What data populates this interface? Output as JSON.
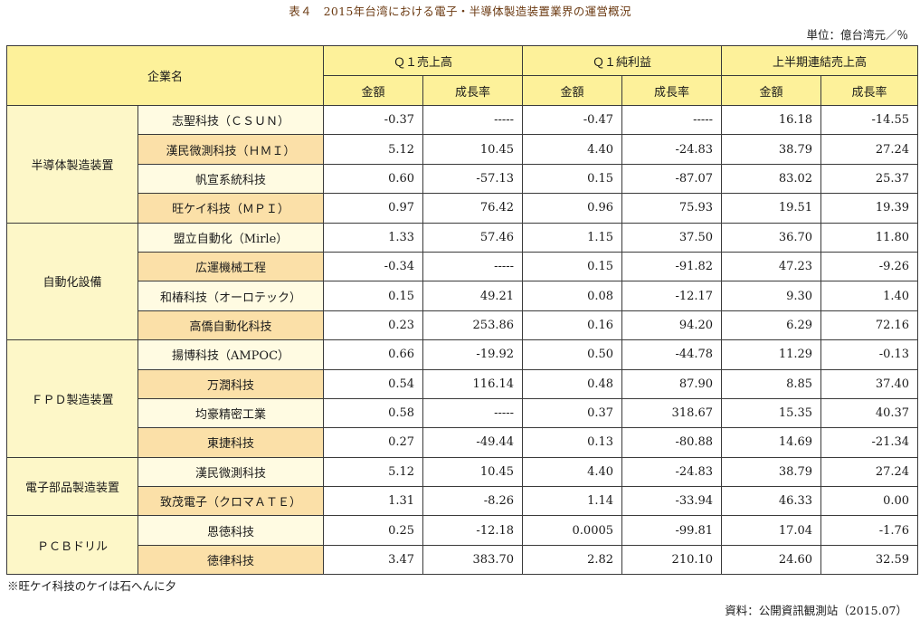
{
  "title": "表４　2015年台湾における電子・半導体製造装置業界の運営概況",
  "unit": "単位：億台湾元／％",
  "table": {
    "header_company": "企業名",
    "groups": [
      "Ｑ１売上高",
      "Ｑ１純利益",
      "上半期連結売上高"
    ],
    "sub": {
      "amount": "金額",
      "growth": "成長率"
    },
    "categories": [
      {
        "label": "半導体製造装置",
        "rows": [
          {
            "name": "志聖科技（ＣＳＵＮ）",
            "v": [
              "-0.37",
              "-----",
              "-0.47",
              "-----",
              "16.18",
              "-14.55"
            ]
          },
          {
            "name": "漢民微測科技（ＨＭＩ）",
            "v": [
              "5.12",
              "10.45",
              "4.40",
              "-24.83",
              "38.79",
              "27.24"
            ]
          },
          {
            "name": "帆宣系統科技",
            "v": [
              "0.60",
              "-57.13",
              "0.15",
              "-87.07",
              "83.02",
              "25.37"
            ]
          },
          {
            "name": "旺ケイ科技（ＭＰＩ）",
            "v": [
              "0.97",
              "76.42",
              "0.96",
              "75.93",
              "19.51",
              "19.39"
            ]
          }
        ]
      },
      {
        "label": "自動化設備",
        "rows": [
          {
            "name": "盟立自動化（Mirle）",
            "v": [
              "1.33",
              "57.46",
              "1.15",
              "37.50",
              "36.70",
              "11.80"
            ]
          },
          {
            "name": "広運機械工程",
            "v": [
              "-0.34",
              "-----",
              "0.15",
              "-91.82",
              "47.23",
              "-9.26"
            ]
          },
          {
            "name": "和椿科技（オーロテック）",
            "v": [
              "0.15",
              "49.21",
              "0.08",
              "-12.17",
              "9.30",
              "1.40"
            ]
          },
          {
            "name": "高僑自動化科技",
            "v": [
              "0.23",
              "253.86",
              "0.16",
              "94.20",
              "6.29",
              "72.16"
            ]
          }
        ]
      },
      {
        "label": "ＦＰＤ製造装置",
        "rows": [
          {
            "name": "揚博科技（AMPOC）",
            "v": [
              "0.66",
              "-19.92",
              "0.50",
              "-44.78",
              "11.29",
              "-0.13"
            ]
          },
          {
            "name": "万潤科技",
            "v": [
              "0.54",
              "116.14",
              "0.48",
              "87.90",
              "8.85",
              "37.40"
            ]
          },
          {
            "name": "均豪精密工業",
            "v": [
              "0.58",
              "-----",
              "0.37",
              "318.67",
              "15.35",
              "40.37"
            ]
          },
          {
            "name": "東捷科技",
            "v": [
              "0.27",
              "-49.44",
              "0.13",
              "-80.88",
              "14.69",
              "-21.34"
            ]
          }
        ]
      },
      {
        "label": "電子部品製造装置",
        "rows": [
          {
            "name": "漢民微測科技",
            "v": [
              "5.12",
              "10.45",
              "4.40",
              "-24.83",
              "38.79",
              "27.24"
            ]
          },
          {
            "name": "致茂電子（クロマＡＴＥ）",
            "v": [
              "1.31",
              "-8.26",
              "1.14",
              "-33.94",
              "46.33",
              "0.00"
            ]
          }
        ]
      },
      {
        "label": "ＰＣＢドリル",
        "rows": [
          {
            "name": "恩徳科技",
            "v": [
              "0.25",
              "-12.18",
              "0.0005",
              "-99.81",
              "17.04",
              "-1.76"
            ]
          },
          {
            "name": "徳律科技",
            "v": [
              "3.47",
              "383.70",
              "2.82",
              "210.10",
              "24.60",
              "32.59"
            ]
          }
        ]
      }
    ]
  },
  "footnote": "※旺ケイ科技のケイは石へんに夕",
  "source": "資料：公開資訊観測站（2015.07）",
  "colors": {
    "header_bg": "#fdf19a",
    "name_alt_bg": "#fbe0a8",
    "name_bg": "#fffbe2",
    "title_color": "#6b3a12"
  }
}
